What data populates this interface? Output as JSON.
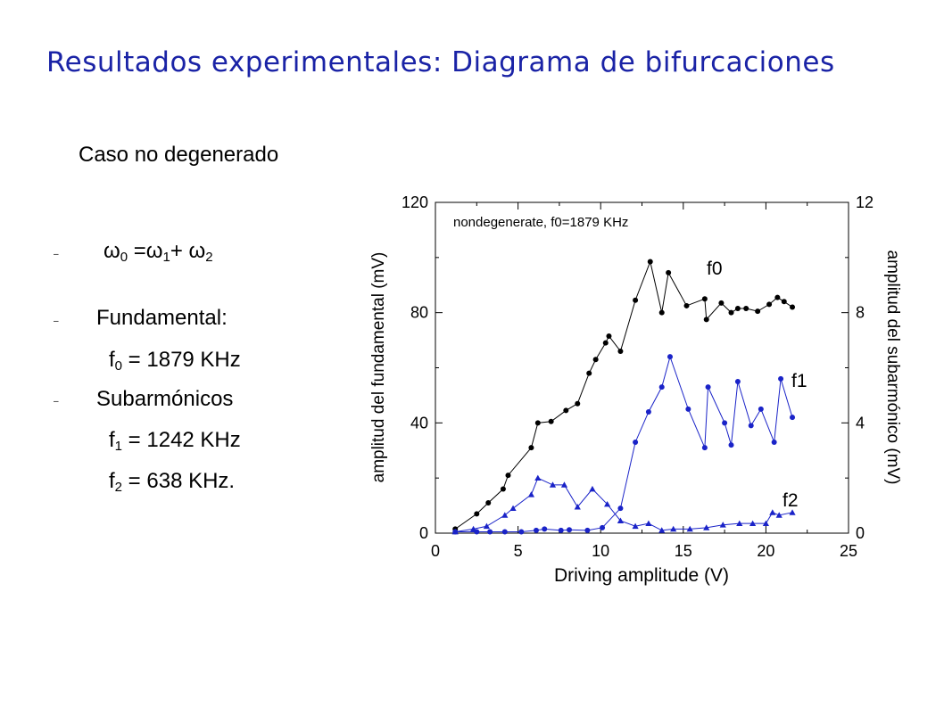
{
  "slide": {
    "title": "Resultados experimentales: Diagrama de bifurcaciones",
    "subtitle": "Caso no degenerado",
    "bullet_marker": "–",
    "omega_line": {
      "w": "ω",
      "s0": "0",
      "eq": " =ω",
      "s1": "1",
      "plus": "+ ω",
      "s2": "2"
    },
    "fundamental_label": "Fundamental:",
    "f0_line": {
      "f": "f",
      "sub": "0",
      "rest": " = 1879 KHz"
    },
    "subharmonics_label": "Subarmónicos",
    "f1_line": {
      "f": "f",
      "sub": "1",
      "rest": " = 1242 KHz"
    },
    "f2_line": {
      "f": "f",
      "sub": "2",
      "rest": " =   638 KHz."
    }
  },
  "chart_data": {
    "type": "line",
    "title": "nondegenerate, f0=1879 KHz",
    "xlabel": "Driving amplitude (V)",
    "ylabel": "amplitud del fundamental (mV)",
    "ylabel_right": "amplitud del subarmónico (mV)",
    "xlim": [
      0,
      25
    ],
    "ylim": [
      0,
      120
    ],
    "ylim_right": [
      0,
      12
    ],
    "xticks": [
      "0",
      "5",
      "10",
      "15",
      "20",
      "25"
    ],
    "yticks": [
      "0",
      "40",
      "80",
      "120"
    ],
    "yticks_right": [
      "0",
      "4",
      "8",
      "12"
    ],
    "grid": false,
    "series": [
      {
        "name": "f0",
        "axis": "left",
        "marker": "circle",
        "color": "#000000",
        "x": [
          1.2,
          2.5,
          3.2,
          4.1,
          4.4,
          5.8,
          6.2,
          7,
          7.9,
          8.6,
          9.3,
          9.7,
          10.3,
          10.5,
          11.2,
          12.1,
          13,
          13.7,
          14.1,
          15.2,
          16.3,
          16.4,
          17.3,
          17.9,
          18.3,
          18.8,
          19.5,
          20.2,
          20.7,
          21.1,
          21.6
        ],
        "y": [
          1.5,
          7,
          11,
          16,
          21,
          31,
          40,
          40.5,
          44.5,
          47,
          58,
          63,
          69,
          71.5,
          66,
          84.5,
          98.5,
          80,
          94.5,
          82.5,
          85,
          77.5,
          83.5,
          80,
          81.5,
          81.5,
          80.5,
          83,
          85.5,
          84,
          82
        ]
      },
      {
        "name": "f1",
        "axis": "right",
        "marker": "circle",
        "color": "#1a23c8",
        "x": [
          1.2,
          2.5,
          3.3,
          4.2,
          5.2,
          6.1,
          6.6,
          7.6,
          8.1,
          9.2,
          10.1,
          11.2,
          12.1,
          12.9,
          13.7,
          14.2,
          15.3,
          16.3,
          16.5,
          17.5,
          17.9,
          18.3,
          19.1,
          19.7,
          20.5,
          20.9,
          21.6
        ],
        "y": [
          0.05,
          0.05,
          0.05,
          0.05,
          0.05,
          0.1,
          0.15,
          0.1,
          0.12,
          0.1,
          0.2,
          0.9,
          3.3,
          4.4,
          5.3,
          6.4,
          4.5,
          3.1,
          5.3,
          4.0,
          3.2,
          5.5,
          3.9,
          4.5,
          3.3,
          5.6,
          4.2
        ]
      },
      {
        "name": "f2",
        "axis": "right",
        "marker": "triangle",
        "color": "#1a23c8",
        "x": [
          1.2,
          2.3,
          3.1,
          4.2,
          4.7,
          5.8,
          6.2,
          7.1,
          7.8,
          8.6,
          9.5,
          10.4,
          11.2,
          12.1,
          12.9,
          13.7,
          14.4,
          15.4,
          16.4,
          17.4,
          18.4,
          19.2,
          20,
          20.4,
          20.8,
          21.6
        ],
        "y": [
          0.05,
          0.15,
          0.25,
          0.65,
          0.9,
          1.4,
          2.0,
          1.75,
          1.75,
          0.95,
          1.6,
          1.05,
          0.45,
          0.25,
          0.35,
          0.1,
          0.15,
          0.15,
          0.2,
          0.3,
          0.35,
          0.35,
          0.35,
          0.75,
          0.65,
          0.75
        ]
      }
    ],
    "annotations": [
      "f0",
      "f1",
      "f2"
    ]
  }
}
